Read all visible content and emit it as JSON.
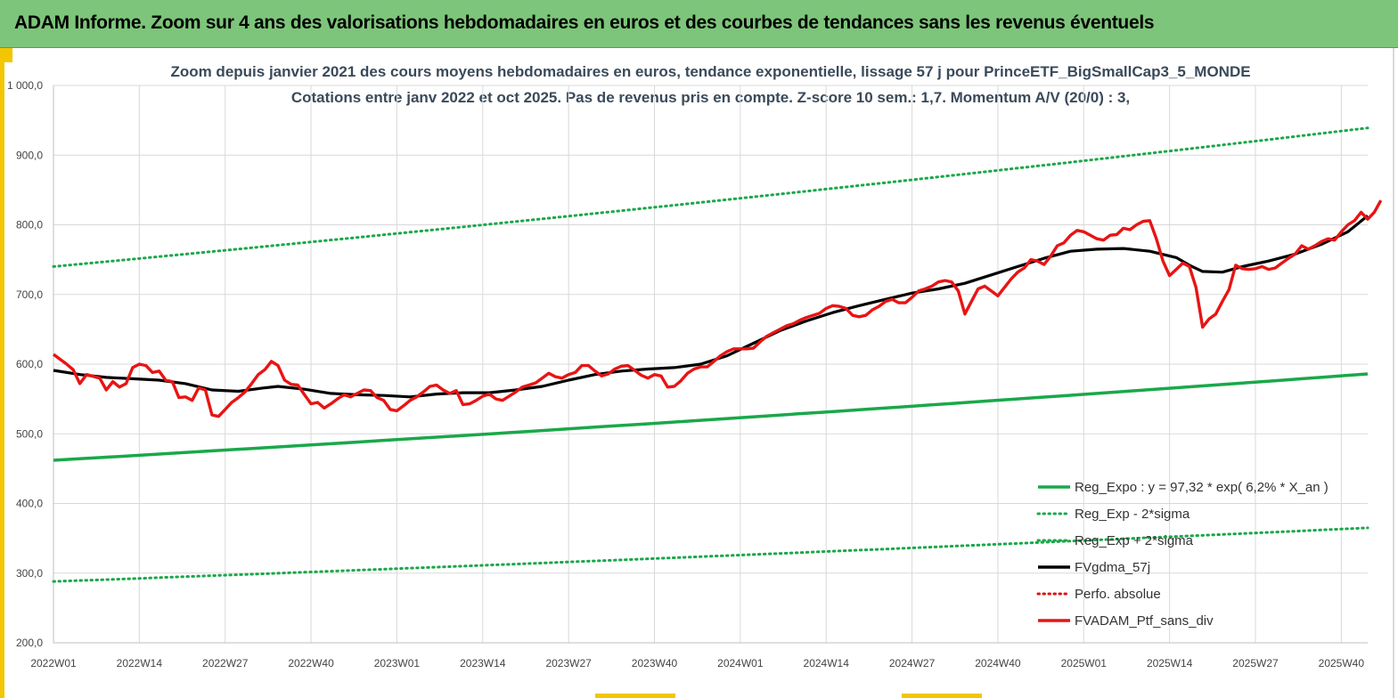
{
  "header": {
    "title": "ADAM Informe. Zoom sur 4 ans des valorisations hebdomadaires en euros et des courbes de tendances sans les revenus éventuels"
  },
  "colors": {
    "banner": "#7dc57a",
    "accent": "#f2c600",
    "reg_expo": "#1aa84a",
    "sigma": "#1aa84a",
    "gdma": "#000000",
    "perfo": "#e01010",
    "ptf": "#e81414"
  },
  "chart_data": {
    "type": "line",
    "title": "Zoom depuis janvier 2021 des cours moyens hebdomadaires  en euros, tendance exponentielle, lissage 57 j pour PrinceETF_BigSmallCap3_5_MONDE",
    "subtitle": "Cotations  entre janv 2022 et oct 2025. Pas de revenus pris en compte. Z-score 10 sem.: 1,7. Momentum A/V (20/0) : 3,",
    "ylim": [
      200,
      1000
    ],
    "y_ticks": [
      "1 000,0",
      "900,0",
      "800,0",
      "700,0",
      "600,0",
      "500,0",
      "400,0",
      "300,0",
      "200,0"
    ],
    "x_ticks": [
      "2022W01",
      "2022W14",
      "2022W27",
      "2022W40",
      "2023W01",
      "2023W14",
      "2023W27",
      "2023W40",
      "2024W01",
      "2024W14",
      "2024W27",
      "2024W40",
      "2025W01",
      "2025W14",
      "2025W27",
      "2025W40"
    ],
    "x_tick_weeks": [
      0,
      13,
      26,
      39,
      52,
      65,
      78,
      91,
      104,
      117,
      130,
      143,
      156,
      169,
      182,
      195
    ],
    "x_max_week": 199,
    "grid": true,
    "legend_position": "bottom-right",
    "series": [
      {
        "name": "Reg_Expo : y = 97,32 * exp( 6,2% *  X_an )",
        "style": "solid",
        "start": 462,
        "end": 586
      },
      {
        "name": "Reg_Exp - 2*sigma",
        "style": "dotted",
        "start": 288,
        "end": 365
      },
      {
        "name": "Reg_Exp + 2*sigma",
        "style": "dotted",
        "start": 740,
        "end": 939
      },
      {
        "name": "FVgdma_57j",
        "style": "solid",
        "points": [
          [
            0,
            591
          ],
          [
            4,
            585
          ],
          [
            8,
            581
          ],
          [
            12,
            579
          ],
          [
            16,
            577
          ],
          [
            20,
            572
          ],
          [
            24,
            563
          ],
          [
            28,
            561
          ],
          [
            32,
            566
          ],
          [
            34,
            568
          ],
          [
            38,
            564
          ],
          [
            42,
            558
          ],
          [
            46,
            556
          ],
          [
            50,
            555
          ],
          [
            54,
            553
          ],
          [
            58,
            557
          ],
          [
            62,
            559
          ],
          [
            66,
            559
          ],
          [
            70,
            563
          ],
          [
            74,
            568
          ],
          [
            78,
            577
          ],
          [
            82,
            585
          ],
          [
            86,
            590
          ],
          [
            90,
            593
          ],
          [
            94,
            595
          ],
          [
            98,
            600
          ],
          [
            102,
            612
          ],
          [
            106,
            630
          ],
          [
            110,
            648
          ],
          [
            114,
            662
          ],
          [
            118,
            674
          ],
          [
            122,
            684
          ],
          [
            126,
            693
          ],
          [
            130,
            702
          ],
          [
            134,
            708
          ],
          [
            138,
            716
          ],
          [
            142,
            728
          ],
          [
            146,
            740
          ],
          [
            150,
            752
          ],
          [
            154,
            762
          ],
          [
            158,
            765
          ],
          [
            162,
            766
          ],
          [
            166,
            762
          ],
          [
            170,
            753
          ],
          [
            172,
            742
          ],
          [
            174,
            733
          ],
          [
            177,
            732
          ],
          [
            180,
            740
          ],
          [
            184,
            748
          ],
          [
            188,
            758
          ],
          [
            192,
            772
          ],
          [
            196,
            790
          ],
          [
            199,
            813
          ]
        ]
      },
      {
        "name": "Perfo. absolue",
        "style": "dotted",
        "points": []
      },
      {
        "name": "FVADAM_Ptf_sans_div",
        "style": "solid",
        "points": [
          [
            0,
            614
          ],
          [
            2,
            600
          ],
          [
            3,
            592
          ],
          [
            4,
            572
          ],
          [
            5,
            585
          ],
          [
            7,
            580
          ],
          [
            8,
            563
          ],
          [
            9,
            575
          ],
          [
            10,
            567
          ],
          [
            11,
            572
          ],
          [
            12,
            595
          ],
          [
            13,
            600
          ],
          [
            14,
            598
          ],
          [
            15,
            588
          ],
          [
            16,
            590
          ],
          [
            17,
            577
          ],
          [
            18,
            575
          ],
          [
            19,
            552
          ],
          [
            20,
            553
          ],
          [
            21,
            548
          ],
          [
            22,
            566
          ],
          [
            23,
            563
          ],
          [
            24,
            527
          ],
          [
            25,
            525
          ],
          [
            26,
            535
          ],
          [
            27,
            545
          ],
          [
            28,
            552
          ],
          [
            29,
            560
          ],
          [
            30,
            572
          ],
          [
            31,
            585
          ],
          [
            32,
            592
          ],
          [
            33,
            604
          ],
          [
            34,
            598
          ],
          [
            35,
            577
          ],
          [
            36,
            571
          ],
          [
            37,
            570
          ],
          [
            38,
            556
          ],
          [
            39,
            543
          ],
          [
            40,
            545
          ],
          [
            41,
            537
          ],
          [
            42,
            543
          ],
          [
            43,
            550
          ],
          [
            44,
            556
          ],
          [
            45,
            553
          ],
          [
            46,
            558
          ],
          [
            47,
            563
          ],
          [
            48,
            562
          ],
          [
            49,
            552
          ],
          [
            50,
            548
          ],
          [
            51,
            535
          ],
          [
            52,
            533
          ],
          [
            53,
            540
          ],
          [
            54,
            548
          ],
          [
            55,
            553
          ],
          [
            56,
            560
          ],
          [
            57,
            568
          ],
          [
            58,
            570
          ],
          [
            59,
            563
          ],
          [
            60,
            558
          ],
          [
            61,
            562
          ],
          [
            62,
            542
          ],
          [
            63,
            543
          ],
          [
            64,
            548
          ],
          [
            65,
            554
          ],
          [
            66,
            557
          ],
          [
            67,
            550
          ],
          [
            68,
            548
          ],
          [
            69,
            554
          ],
          [
            70,
            560
          ],
          [
            71,
            567
          ],
          [
            72,
            570
          ],
          [
            73,
            573
          ],
          [
            74,
            580
          ],
          [
            75,
            587
          ],
          [
            76,
            582
          ],
          [
            77,
            580
          ],
          [
            78,
            585
          ],
          [
            79,
            588
          ],
          [
            80,
            598
          ],
          [
            81,
            598
          ],
          [
            82,
            590
          ],
          [
            83,
            583
          ],
          [
            84,
            586
          ],
          [
            85,
            593
          ],
          [
            86,
            597
          ],
          [
            87,
            598
          ],
          [
            88,
            591
          ],
          [
            89,
            584
          ],
          [
            90,
            580
          ],
          [
            91,
            585
          ],
          [
            92,
            583
          ],
          [
            93,
            567
          ],
          [
            94,
            568
          ],
          [
            95,
            576
          ],
          [
            96,
            587
          ],
          [
            97,
            593
          ],
          [
            98,
            596
          ],
          [
            99,
            596
          ],
          [
            100,
            604
          ],
          [
            101,
            612
          ],
          [
            102,
            618
          ],
          [
            103,
            622
          ],
          [
            104,
            622
          ],
          [
            105,
            622
          ],
          [
            106,
            623
          ],
          [
            107,
            632
          ],
          [
            108,
            640
          ],
          [
            109,
            645
          ],
          [
            110,
            650
          ],
          [
            111,
            655
          ],
          [
            112,
            658
          ],
          [
            113,
            663
          ],
          [
            114,
            667
          ],
          [
            115,
            670
          ],
          [
            116,
            673
          ],
          [
            117,
            680
          ],
          [
            118,
            684
          ],
          [
            119,
            683
          ],
          [
            120,
            680
          ],
          [
            121,
            670
          ],
          [
            122,
            668
          ],
          [
            123,
            670
          ],
          [
            124,
            678
          ],
          [
            125,
            683
          ],
          [
            126,
            690
          ],
          [
            127,
            693
          ],
          [
            128,
            688
          ],
          [
            129,
            688
          ],
          [
            130,
            696
          ],
          [
            131,
            705
          ],
          [
            132,
            708
          ],
          [
            133,
            712
          ],
          [
            134,
            718
          ],
          [
            135,
            720
          ],
          [
            136,
            718
          ],
          [
            137,
            705
          ],
          [
            138,
            672
          ],
          [
            139,
            690
          ],
          [
            140,
            708
          ],
          [
            141,
            712
          ],
          [
            142,
            705
          ],
          [
            143,
            698
          ],
          [
            144,
            710
          ],
          [
            145,
            722
          ],
          [
            146,
            732
          ],
          [
            147,
            738
          ],
          [
            148,
            750
          ],
          [
            149,
            748
          ],
          [
            150,
            743
          ],
          [
            151,
            755
          ],
          [
            152,
            770
          ],
          [
            153,
            774
          ],
          [
            154,
            785
          ],
          [
            155,
            792
          ],
          [
            156,
            790
          ],
          [
            157,
            785
          ],
          [
            158,
            780
          ],
          [
            159,
            778
          ],
          [
            160,
            785
          ],
          [
            161,
            786
          ],
          [
            162,
            795
          ],
          [
            163,
            793
          ],
          [
            164,
            800
          ],
          [
            165,
            805
          ],
          [
            166,
            806
          ],
          [
            167,
            780
          ],
          [
            168,
            748
          ],
          [
            169,
            727
          ],
          [
            170,
            736
          ],
          [
            171,
            745
          ],
          [
            172,
            740
          ],
          [
            173,
            710
          ],
          [
            174,
            653
          ],
          [
            175,
            665
          ],
          [
            176,
            672
          ],
          [
            177,
            690
          ],
          [
            178,
            707
          ],
          [
            179,
            742
          ],
          [
            180,
            737
          ],
          [
            181,
            736
          ],
          [
            182,
            737
          ],
          [
            183,
            740
          ],
          [
            184,
            736
          ],
          [
            185,
            738
          ],
          [
            186,
            745
          ],
          [
            187,
            752
          ],
          [
            188,
            758
          ],
          [
            189,
            770
          ],
          [
            190,
            765
          ],
          [
            191,
            770
          ],
          [
            192,
            776
          ],
          [
            193,
            780
          ],
          [
            194,
            778
          ],
          [
            195,
            790
          ],
          [
            196,
            800
          ],
          [
            197,
            806
          ],
          [
            198,
            818
          ],
          [
            199,
            808
          ],
          [
            200,
            818
          ],
          [
            201,
            835
          ]
        ]
      }
    ]
  }
}
